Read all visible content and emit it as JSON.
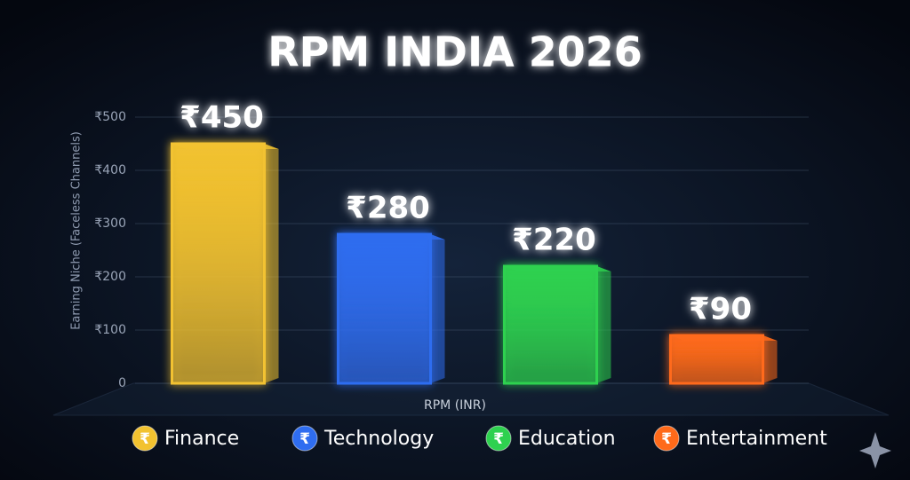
{
  "chart_data": {
    "type": "bar",
    "title": "RPM INDIA 2026",
    "y_label": "Earning Niche (Faceless Channels)",
    "x_label": "RPM (INR)",
    "categories": [
      "Finance",
      "Technology",
      "Education",
      "Entertainment"
    ],
    "values": [
      450,
      280,
      220,
      90
    ],
    "value_labels": [
      "₹450",
      "₹280",
      "₹220",
      "₹90"
    ],
    "colors": [
      "#f2c230",
      "#2f6df0",
      "#2ed14f",
      "#ff6a1a"
    ],
    "legend_symbol": "₹",
    "ylim": [
      0,
      500
    ],
    "yticks": [
      0,
      {
        "value": 100,
        "label": "₹100"
      },
      {
        "value": 200,
        "label": "₹200"
      },
      {
        "value": 300,
        "label": "₹300"
      },
      {
        "value": 400,
        "label": "₹400"
      },
      {
        "value": 500,
        "label": "₹500"
      }
    ],
    "grid": true
  }
}
